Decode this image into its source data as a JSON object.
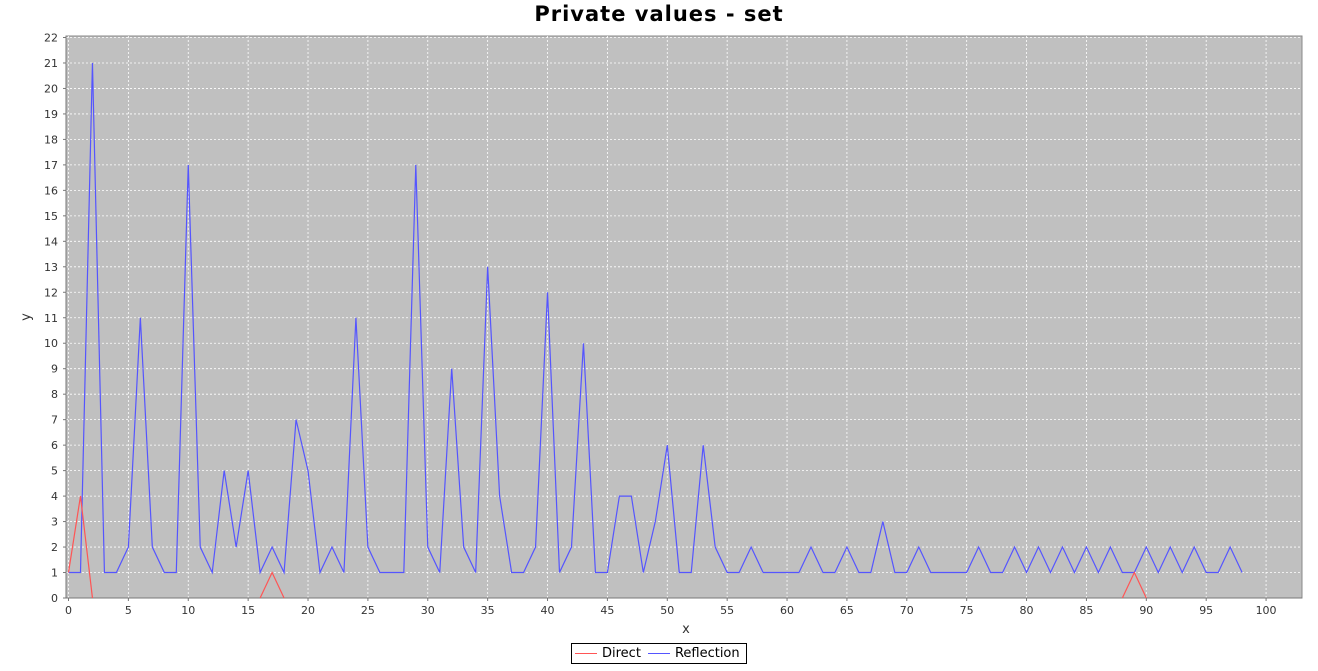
{
  "chart_data": {
    "type": "line",
    "title": "Private values - set",
    "xlabel": "x",
    "ylabel": "y",
    "xlim": [
      0,
      103
    ],
    "ylim": [
      0,
      22
    ],
    "x_ticks": [
      0,
      5,
      10,
      15,
      20,
      25,
      30,
      35,
      40,
      45,
      50,
      55,
      60,
      65,
      70,
      75,
      80,
      85,
      90,
      95,
      100
    ],
    "y_ticks": [
      0,
      1,
      2,
      3,
      4,
      5,
      6,
      7,
      8,
      9,
      10,
      11,
      12,
      13,
      14,
      15,
      16,
      17,
      18,
      19,
      20,
      21,
      22
    ],
    "grid": true,
    "legend_position": "bottom-center",
    "series": [
      {
        "name": "Direct",
        "color": "#ff5555",
        "segments": [
          [
            [
              0,
              1
            ],
            [
              1,
              4
            ],
            [
              2,
              0
            ]
          ],
          [
            [
              16,
              0
            ],
            [
              17,
              1
            ],
            [
              18,
              0
            ]
          ],
          [
            [
              88,
              0
            ],
            [
              89,
              1
            ],
            [
              90,
              0
            ]
          ]
        ]
      },
      {
        "name": "Reflection",
        "color": "#5555ff",
        "x": [
          0,
          1,
          2,
          3,
          4,
          5,
          6,
          7,
          8,
          9,
          10,
          11,
          12,
          13,
          14,
          15,
          16,
          17,
          18,
          19,
          20,
          21,
          22,
          23,
          24,
          25,
          26,
          27,
          28,
          29,
          30,
          31,
          32,
          33,
          34,
          35,
          36,
          37,
          38,
          39,
          40,
          41,
          42,
          43,
          44,
          45,
          46,
          47,
          48,
          49,
          50,
          51,
          52,
          53,
          54,
          55,
          56,
          57,
          58,
          59,
          60,
          61,
          62,
          63,
          64,
          65,
          66,
          67,
          68,
          69,
          70,
          71,
          72,
          73,
          74,
          75,
          76,
          77,
          78,
          79,
          80,
          81,
          82,
          83,
          84,
          85,
          86,
          87,
          88,
          89,
          90,
          91,
          92,
          93,
          94,
          95,
          96,
          97,
          98
        ],
        "values": [
          1,
          1,
          21,
          1,
          1,
          2,
          11,
          2,
          1,
          1,
          17,
          2,
          1,
          5,
          2,
          5,
          1,
          2,
          1,
          7,
          5,
          1,
          2,
          1,
          11,
          2,
          1,
          1,
          1,
          17,
          2,
          1,
          9,
          2,
          1,
          13,
          4,
          1,
          1,
          2,
          12,
          1,
          2,
          10,
          1,
          1,
          4,
          4,
          1,
          3,
          6,
          1,
          1,
          6,
          2,
          1,
          1,
          2,
          1,
          1,
          1,
          1,
          2,
          1,
          1,
          2,
          1,
          1,
          3,
          1,
          1,
          2,
          1,
          1,
          1,
          1,
          2,
          1,
          1,
          2,
          1,
          2,
          1,
          2,
          1,
          2,
          1,
          2,
          1,
          1,
          2,
          1,
          2,
          1,
          2,
          1,
          1,
          2,
          1
        ]
      }
    ]
  },
  "legend": {
    "direct_label": "Direct",
    "reflection_label": "Reflection"
  }
}
